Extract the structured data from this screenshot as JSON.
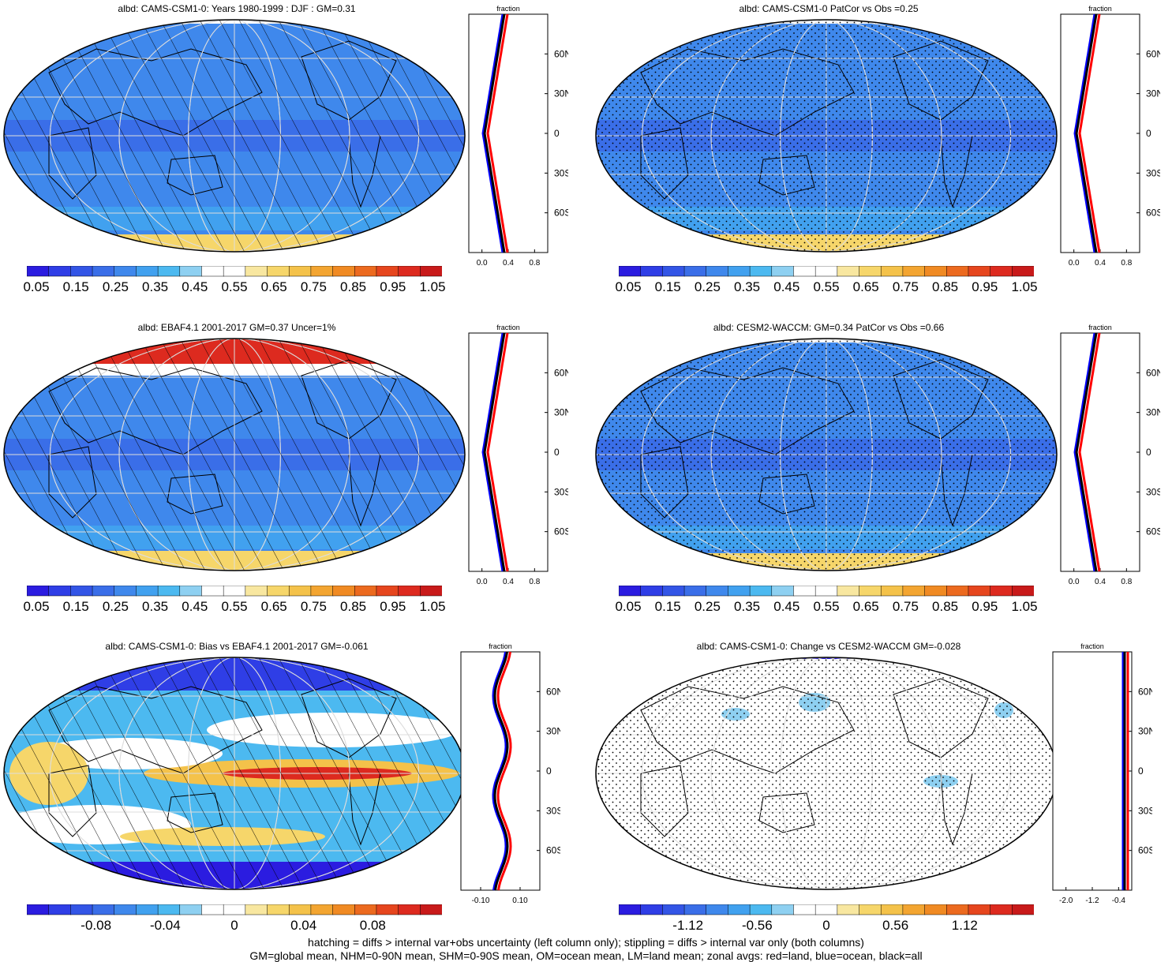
{
  "panels": [
    {
      "title": "albd: CAMS-CSM1-0: Years 1980-1999 : DJF : GM=0.31",
      "overlay": "hatch",
      "type": "clim"
    },
    {
      "title": "albd: CAMS-CSM1-0 PatCor vs Obs =0.25",
      "overlay": "stipple",
      "type": "clim"
    },
    {
      "title": "albd: EBAF4.1 2001-2017 GM=0.37 Uncer=1%",
      "overlay": "hatch",
      "type": "obs"
    },
    {
      "title": "albd: CESM2-WACCM: GM=0.34 PatCor vs Obs =0.66",
      "overlay": "stipple",
      "type": "clim"
    },
    {
      "title": "albd: CAMS-CSM1-0: Bias vs EBAF4.1 2001-2017 GM=-0.061",
      "overlay": "hatch",
      "type": "bias"
    },
    {
      "title": "albd: CAMS-CSM1-0: Change vs CESM2-WACCM GM=-0.028",
      "overlay": "stipple",
      "type": "change"
    }
  ],
  "zonal_axis": {
    "title": "fraction",
    "lat_labels": [
      "60N",
      "30N",
      "0",
      "30S",
      "60S"
    ],
    "x_labels_clim": [
      "0.0",
      "0.4",
      "0.8"
    ],
    "x_labels_bias": [
      "-0.10",
      "0.10"
    ],
    "x_labels_change": [
      "-2.0",
      "-1.2",
      "-0.4"
    ]
  },
  "colorbars": {
    "clim_labels": [
      "0.05",
      "0.15",
      "0.25",
      "0.35",
      "0.45",
      "0.55",
      "0.65",
      "0.75",
      "0.85",
      "0.95",
      "1.05"
    ],
    "bias_labels": [
      "-0.08",
      "-0.04",
      "0",
      "0.04",
      "0.08"
    ],
    "change_labels": [
      "-1.12",
      "-0.56",
      "0",
      "0.56",
      "1.12"
    ],
    "colors": [
      "#2b1ce0",
      "#2f3ee6",
      "#3355e6",
      "#3a6ee8",
      "#3f88ec",
      "#41a1ef",
      "#4cb9f0",
      "#8ed0f1",
      "#ffffff",
      "#ffffff",
      "#f8e7a0",
      "#f6d66a",
      "#f4c24a",
      "#f3a531",
      "#f08a23",
      "#ec6a1f",
      "#e6461e",
      "#dd2a1f",
      "#c81a1a"
    ],
    "ocean_blue": "#3f88ec",
    "land_light": "#7fc3ef"
  },
  "zonal_colors": {
    "land": "#ff0000",
    "ocean": "#0000ff",
    "all": "#000000"
  },
  "footer": {
    "line1": "hatching = diffs > internal var+obs uncertainty (left column only); stippling = diffs > internal var only (both columns)",
    "line2": "GM=global mean, NHM=0-90N mean, SHM=0-90S mean, OM=ocean mean, LM=land mean; zonal avgs: red=land, blue=ocean, black=all"
  }
}
